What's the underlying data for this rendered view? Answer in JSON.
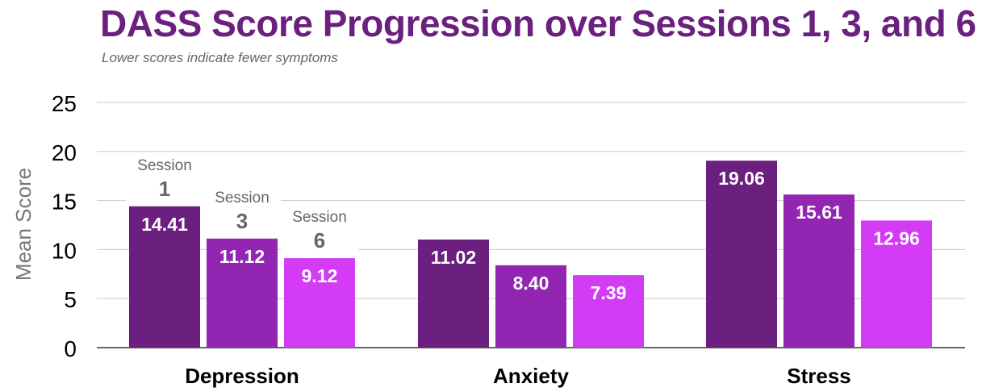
{
  "title": "DASS Score Progression over Sessions 1, 3, and 6",
  "subtitle": "Lower scores indicate fewer symptoms",
  "colors": {
    "session1": "#6b1f7e",
    "session3": "#9226b3",
    "session6": "#d43bf5",
    "grid": "#c9c9c9",
    "axis_text": "#000000",
    "ylabel_text": "#777777",
    "series_label_text": "#666666"
  },
  "chart_data": {
    "type": "bar",
    "title": "DASS Score Progression over Sessions 1, 3, and 6",
    "subtitle": "Lower scores indicate fewer symptoms",
    "xlabel": "",
    "ylabel": "Mean Score",
    "ylim": [
      0,
      25
    ],
    "yticks": [
      0,
      5,
      10,
      15,
      20,
      25
    ],
    "grid": true,
    "categories": [
      "Depression",
      "Anxiety",
      "Stress"
    ],
    "series": [
      {
        "name": "Session 1",
        "label_top": "Session",
        "label_num": "1",
        "values": [
          14.41,
          11.02,
          19.06
        ]
      },
      {
        "name": "Session 3",
        "label_top": "Session",
        "label_num": "3",
        "values": [
          11.12,
          8.4,
          15.61
        ]
      },
      {
        "name": "Session 6",
        "label_top": "Session",
        "label_num": "6",
        "values": [
          9.12,
          7.39,
          12.96
        ]
      }
    ],
    "value_labels": [
      [
        "14.41",
        "11.02",
        "19.06"
      ],
      [
        "11.12",
        "8.40",
        "15.61"
      ],
      [
        "9.12",
        "7.39",
        "12.96"
      ]
    ]
  }
}
